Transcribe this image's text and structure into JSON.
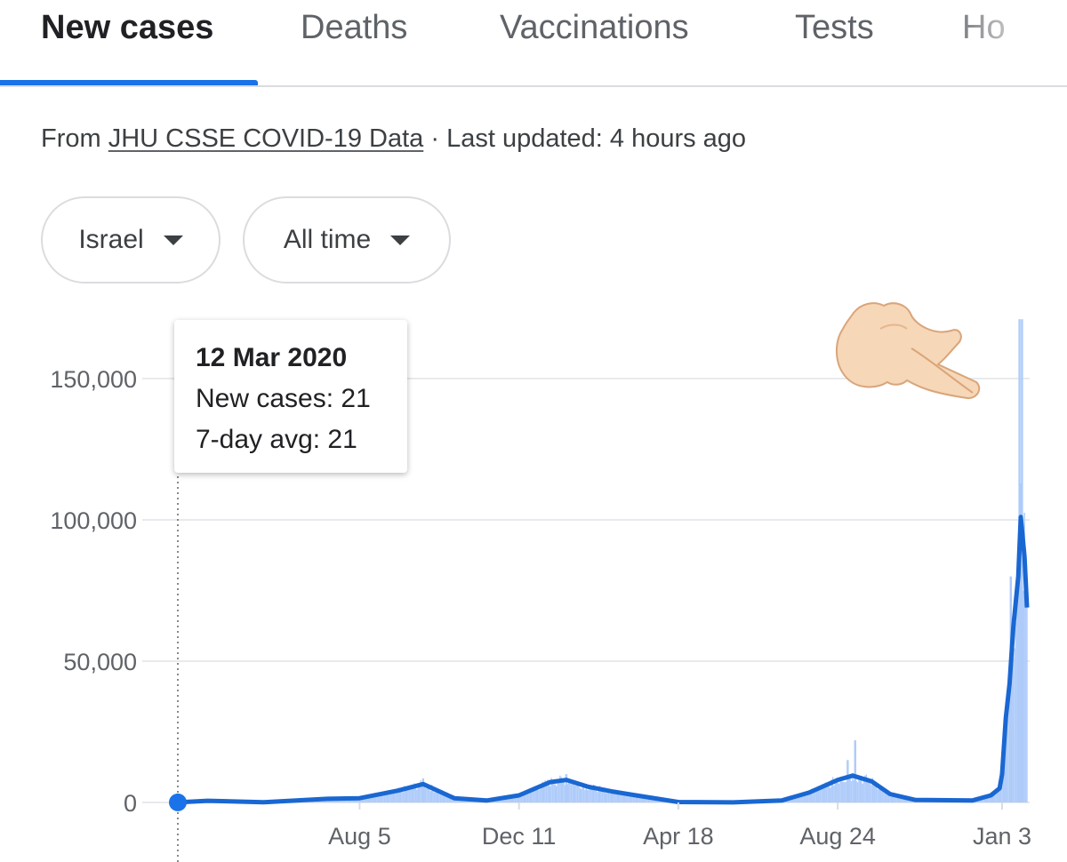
{
  "tabs": [
    {
      "label": "New cases",
      "active": true
    },
    {
      "label": "Deaths"
    },
    {
      "label": "Vaccinations"
    },
    {
      "label": "Tests"
    },
    {
      "label": "Ho"
    }
  ],
  "source": {
    "prefix": "From",
    "link": "JHU CSSE COVID-19 Data",
    "separator": "·",
    "updated": "Last updated: 4 hours ago"
  },
  "filters": {
    "location": "Israel",
    "period": "All time"
  },
  "tooltip": {
    "date": "12 Mar 2020",
    "new_cases": "New cases: 21",
    "avg": "7-day avg: 21"
  },
  "overlay": {
    "emoji": "pointing-down-right-hand-icon"
  },
  "colors": {
    "accent": "#1a73e8",
    "bars": "#aecbfa",
    "line": "#1967d2",
    "grid": "#e8eaed"
  },
  "chart_data": {
    "type": "bar",
    "y_ticks": [
      "150,000",
      "100,000",
      "50,000",
      "0"
    ],
    "y_tick_values": [
      150000,
      100000,
      50000,
      0
    ],
    "x_ticks": [
      "Aug 5",
      "Dec 11",
      "Apr 18",
      "Aug 24",
      "Jan 3"
    ],
    "ylim": [
      0,
      160000
    ],
    "x_range": [
      "2020-03-12",
      "2022-01-23"
    ],
    "grid": true,
    "series": [
      {
        "name": "New cases",
        "style": "bars"
      },
      {
        "name": "7-day avg",
        "style": "line"
      }
    ],
    "avg_points": [
      {
        "x": "2020-03-12",
        "y": 21
      },
      {
        "x": "2020-04-05",
        "y": 600
      },
      {
        "x": "2020-05-20",
        "y": 50
      },
      {
        "x": "2020-07-10",
        "y": 1300
      },
      {
        "x": "2020-08-05",
        "y": 1500
      },
      {
        "x": "2020-09-05",
        "y": 4200
      },
      {
        "x": "2020-09-25",
        "y": 6500
      },
      {
        "x": "2020-10-20",
        "y": 1500
      },
      {
        "x": "2020-11-15",
        "y": 700
      },
      {
        "x": "2020-12-11",
        "y": 2500
      },
      {
        "x": "2021-01-05",
        "y": 7200
      },
      {
        "x": "2021-01-18",
        "y": 8000
      },
      {
        "x": "2021-02-05",
        "y": 5500
      },
      {
        "x": "2021-02-25",
        "y": 3800
      },
      {
        "x": "2021-03-15",
        "y": 2500
      },
      {
        "x": "2021-04-18",
        "y": 150
      },
      {
        "x": "2021-06-01",
        "y": 20
      },
      {
        "x": "2021-07-10",
        "y": 700
      },
      {
        "x": "2021-08-01",
        "y": 3500
      },
      {
        "x": "2021-08-24",
        "y": 8000
      },
      {
        "x": "2021-09-05",
        "y": 9500
      },
      {
        "x": "2021-09-20",
        "y": 7500
      },
      {
        "x": "2021-10-05",
        "y": 3000
      },
      {
        "x": "2021-10-25",
        "y": 900
      },
      {
        "x": "2021-12-10",
        "y": 700
      },
      {
        "x": "2021-12-25",
        "y": 2500
      },
      {
        "x": "2022-01-01",
        "y": 5000
      },
      {
        "x": "2022-01-03",
        "y": 10000
      },
      {
        "x": "2022-01-06",
        "y": 30000
      },
      {
        "x": "2022-01-09",
        "y": 42000
      },
      {
        "x": "2022-01-12",
        "y": 62000
      },
      {
        "x": "2022-01-16",
        "y": 80000
      },
      {
        "x": "2022-01-18",
        "y": 101000
      },
      {
        "x": "2022-01-21",
        "y": 87000
      },
      {
        "x": "2022-01-23",
        "y": 69000
      }
    ],
    "daily_peaks": [
      {
        "x": "2020-09-25",
        "y": 8500
      },
      {
        "x": "2021-01-18",
        "y": 10000
      },
      {
        "x": "2021-09-01",
        "y": 15000
      },
      {
        "x": "2021-09-07",
        "y": 22000
      },
      {
        "x": "2022-01-10",
        "y": 80000
      },
      {
        "x": "2022-01-17",
        "y": 171000
      },
      {
        "x": "2022-01-19",
        "y": 171000
      }
    ]
  }
}
